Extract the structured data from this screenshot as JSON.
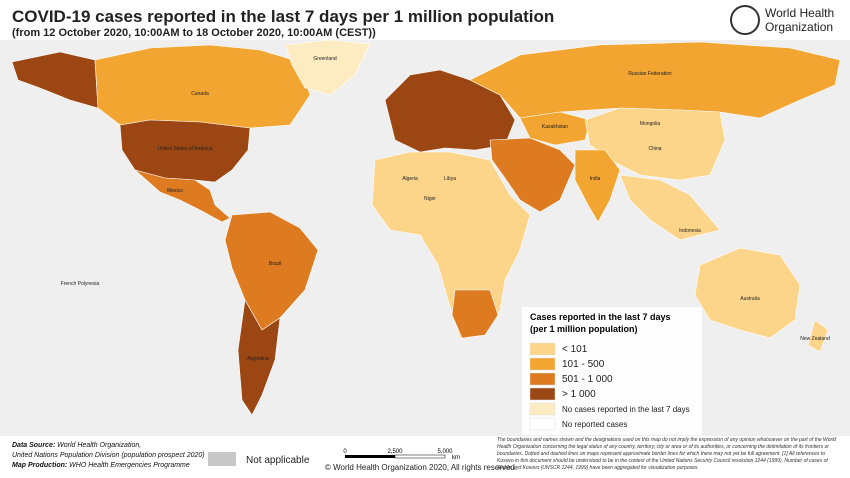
{
  "header": {
    "title": "COVID-19 cases reported in the last 7 days per 1 million population",
    "subtitle": "(from 12 October 2020, 10:00AM  to 18 October 2020, 10:00AM (CEST))",
    "logo_text": [
      "World Health",
      "Organization"
    ]
  },
  "legend": {
    "title": [
      "Cases reported in the last 7 days",
      "(per 1 million population)"
    ],
    "items": [
      {
        "label": "< 101",
        "color": "#fdd58a"
      },
      {
        "label": "101 - 500",
        "color": "#f2a531"
      },
      {
        "label": "501 - 1 000",
        "color": "#de7a1f"
      },
      {
        "label": "> 1 000",
        "color": "#9c4613"
      },
      {
        "label": "No cases reported in the last 7 days",
        "color": "#fdebc2"
      },
      {
        "label": "No reported cases",
        "color": "#ffffff"
      }
    ]
  },
  "map_labels": [
    "Canada",
    "United States of America",
    "Greenland",
    "Mexico",
    "Brazil",
    "Argentina",
    "Russian Federation",
    "Kazakhstan",
    "China",
    "Mongolia",
    "India",
    "Australia",
    "Algeria",
    "Libya",
    "Niger",
    "French Polynesia",
    "New Zealand",
    "Indonesia"
  ],
  "footer": {
    "data_source_label": "Data Source:",
    "data_source": "World Health Organization,",
    "data_source_2": "United Nations Population Division (population prospect 2020)",
    "map_production_label": "Map Production:",
    "map_production": "WHO Health Emergencies Programme",
    "not_applicable": "Not applicable",
    "not_applicable_color": "#c8c8c8",
    "scale": [
      "0",
      "2,500",
      "5,000"
    ],
    "scale_unit": "km",
    "copyright": "© World Health Organization 2020, All rights reserved.",
    "disclaimer": "The boundaries and names shown and the designations used on this map do not imply the expression of any opinion whatsoever on the part of the World Health Organization concerning the legal status of any country, territory, city or area or of its authorities, or concerning the delimitation of its frontiers or boundaries. Dotted and dashed lines on maps represent approximate border lines for which there may not yet be full agreement. [1] All references to Kosovo in this document should be understood to be in the context of the United Nations Security Council resolution 1244 (1999). Number of cases of Serbia and Kosovo (UNSCR 1244, 1999) have been aggregated for visualization purposes."
  }
}
